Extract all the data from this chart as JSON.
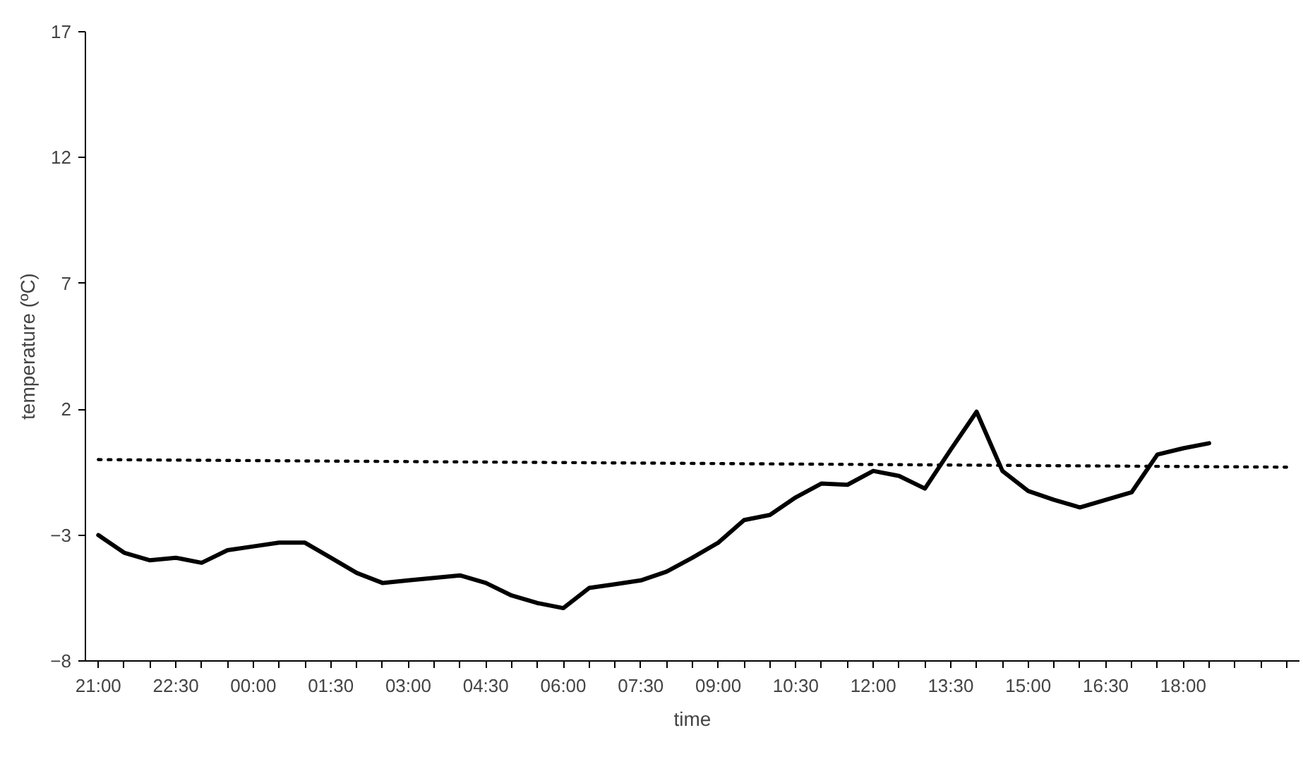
{
  "chart_data": {
    "type": "line",
    "xlabel": "time",
    "ylabel": "temperature (ºC)",
    "xlim": [
      "2000-01-01T20:45",
      "2000-01-02T20:15"
    ],
    "ylim": [
      -8,
      17
    ],
    "yticks": [
      -8,
      -3,
      2,
      7,
      12,
      17
    ],
    "xticks": [
      {
        "value": "2000-01-01T21:00",
        "label": "21:00"
      },
      {
        "value": "2000-01-01T21:30",
        "label": null
      },
      {
        "value": "2000-01-01T22:00",
        "label": null
      },
      {
        "value": "2000-01-01T22:30",
        "label": "22:30"
      },
      {
        "value": "2000-01-01T23:00",
        "label": null
      },
      {
        "value": "2000-01-01T23:30",
        "label": null
      },
      {
        "value": "2000-01-02T00:00",
        "label": "00:00"
      },
      {
        "value": "2000-01-02T00:30",
        "label": null
      },
      {
        "value": "2000-01-02T01:00",
        "label": null
      },
      {
        "value": "2000-01-02T01:30",
        "label": "01:30"
      },
      {
        "value": "2000-01-02T02:00",
        "label": null
      },
      {
        "value": "2000-01-02T02:30",
        "label": null
      },
      {
        "value": "2000-01-02T03:00",
        "label": "03:00"
      },
      {
        "value": "2000-01-02T03:30",
        "label": null
      },
      {
        "value": "2000-01-02T04:00",
        "label": null
      },
      {
        "value": "2000-01-02T04:30",
        "label": "04:30"
      },
      {
        "value": "2000-01-02T05:00",
        "label": null
      },
      {
        "value": "2000-01-02T05:30",
        "label": null
      },
      {
        "value": "2000-01-02T06:00",
        "label": "06:00"
      },
      {
        "value": "2000-01-02T06:30",
        "label": null
      },
      {
        "value": "2000-01-02T07:00",
        "label": null
      },
      {
        "value": "2000-01-02T07:30",
        "label": "07:30"
      },
      {
        "value": "2000-01-02T08:00",
        "label": null
      },
      {
        "value": "2000-01-02T08:30",
        "label": null
      },
      {
        "value": "2000-01-02T09:00",
        "label": "09:00"
      },
      {
        "value": "2000-01-02T09:30",
        "label": null
      },
      {
        "value": "2000-01-02T10:00",
        "label": null
      },
      {
        "value": "2000-01-02T10:30",
        "label": "10:30"
      },
      {
        "value": "2000-01-02T11:00",
        "label": null
      },
      {
        "value": "2000-01-02T11:30",
        "label": null
      },
      {
        "value": "2000-01-02T12:00",
        "label": "12:00"
      },
      {
        "value": "2000-01-02T12:30",
        "label": null
      },
      {
        "value": "2000-01-02T13:00",
        "label": null
      },
      {
        "value": "2000-01-02T13:30",
        "label": "13:30"
      },
      {
        "value": "2000-01-02T14:00",
        "label": null
      },
      {
        "value": "2000-01-02T14:30",
        "label": null
      },
      {
        "value": "2000-01-02T15:00",
        "label": "15:00"
      },
      {
        "value": "2000-01-02T15:30",
        "label": null
      },
      {
        "value": "2000-01-02T16:00",
        "label": null
      },
      {
        "value": "2000-01-02T16:30",
        "label": "16:30"
      },
      {
        "value": "2000-01-02T17:00",
        "label": null
      },
      {
        "value": "2000-01-02T17:30",
        "label": null
      },
      {
        "value": "2000-01-02T18:00",
        "label": "18:00"
      },
      {
        "value": "2000-01-02T18:30",
        "label": null
      },
      {
        "value": "2000-01-02T19:00",
        "label": null
      },
      {
        "value": "2000-01-02T19:30",
        "label": null
      },
      {
        "value": "2000-01-02T20:00",
        "label": null
      }
    ],
    "grid": false,
    "marker": "none",
    "series": [
      {
        "color": "#000000",
        "line_style": "solid",
        "x": [
          "2000-01-01T21:00",
          "2000-01-01T21:30",
          "2000-01-01T22:00",
          "2000-01-01T22:30",
          "2000-01-01T23:00",
          "2000-01-01T23:30",
          "2000-01-02T00:00",
          "2000-01-02T00:30",
          "2000-01-02T01:00",
          "2000-01-02T01:30",
          "2000-01-02T02:00",
          "2000-01-02T02:30",
          "2000-01-02T03:00",
          "2000-01-02T03:30",
          "2000-01-02T04:00",
          "2000-01-02T04:30",
          "2000-01-02T05:00",
          "2000-01-02T05:30",
          "2000-01-02T06:00",
          "2000-01-02T06:30",
          "2000-01-02T07:00",
          "2000-01-02T07:30",
          "2000-01-02T08:00",
          "2000-01-02T08:30",
          "2000-01-02T09:00",
          "2000-01-02T09:30",
          "2000-01-02T10:00",
          "2000-01-02T10:30",
          "2000-01-02T11:00",
          "2000-01-02T11:30",
          "2000-01-02T12:00",
          "2000-01-02T12:30",
          "2000-01-02T13:00",
          "2000-01-02T13:30",
          "2000-01-02T14:00",
          "2000-01-02T14:30",
          "2000-01-02T15:00",
          "2000-01-02T15:30",
          "2000-01-02T16:00",
          "2000-01-02T16:30",
          "2000-01-02T17:00",
          "2000-01-02T17:30",
          "2000-01-02T18:00",
          "2000-01-02T18:30"
        ],
        "values": [
          -3.0,
          -3.7,
          -4.0,
          -3.9,
          -4.1,
          -3.6,
          -3.45,
          -3.3,
          -3.3,
          -3.9,
          -4.5,
          -4.9,
          -4.8,
          -4.7,
          -4.6,
          -4.9,
          -5.4,
          -5.7,
          -5.9,
          -5.1,
          -4.95,
          -4.8,
          -4.45,
          -3.9,
          -3.3,
          -2.4,
          -2.2,
          -1.5,
          -0.95,
          -1.0,
          -0.45,
          -0.65,
          -1.15,
          0.4,
          1.9,
          -0.45,
          -1.25,
          -1.6,
          -1.9,
          -1.6,
          -1.3,
          0.2,
          0.45,
          0.65
        ]
      },
      {
        "color": "#000000",
        "line_style": "dotted",
        "x": [
          "2000-01-01T21:00",
          "2000-01-02T20:00"
        ],
        "values": [
          0.0,
          -0.3
        ]
      }
    ]
  }
}
